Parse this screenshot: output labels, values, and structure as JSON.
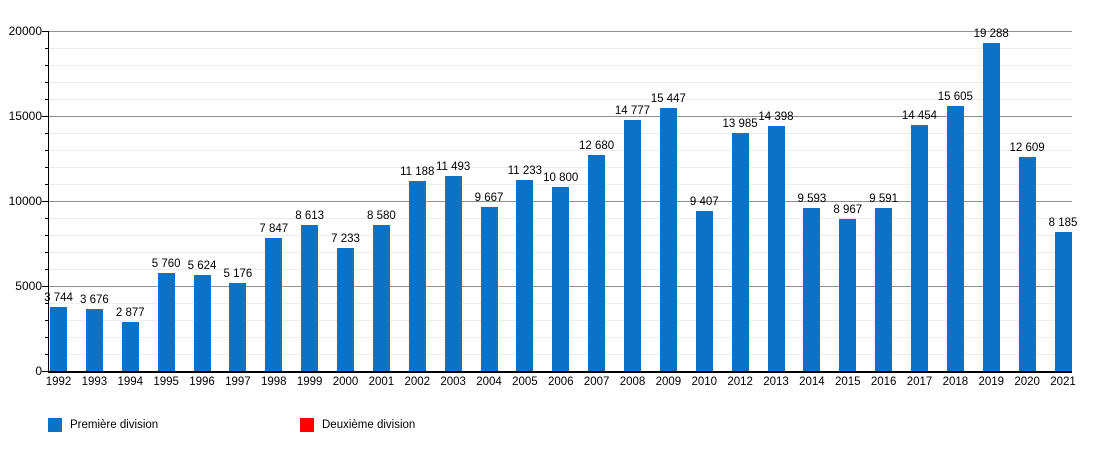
{
  "chart_data": {
    "type": "bar",
    "title": "",
    "xlabel": "",
    "ylabel": "",
    "categories": [
      "1992",
      "1993",
      "1994",
      "1995",
      "1996",
      "1997",
      "1998",
      "1999",
      "2000",
      "2001",
      "2002",
      "2003",
      "2004",
      "2005",
      "2006",
      "2007",
      "2008",
      "2009",
      "2010",
      "2012",
      "2013",
      "2014",
      "2015",
      "2016",
      "2017",
      "2018",
      "2019",
      "2020",
      "2021"
    ],
    "series": [
      {
        "name": "Première division",
        "color": "#0b72c6",
        "values": [
          3744,
          3676,
          2877,
          5760,
          5624,
          5176,
          7847,
          8613,
          7233,
          8580,
          11188,
          11493,
          9667,
          11233,
          10800,
          12680,
          14777,
          15447,
          9407,
          13985,
          14398,
          9593,
          8967,
          9591,
          14454,
          15605,
          19288,
          12609,
          8185
        ],
        "value_labels": [
          "3 744",
          "3 676",
          "2 877",
          "5 760",
          "5 624",
          "5 176",
          "7 847",
          "8 613",
          "7 233",
          "8 580",
          "11 188",
          "11 493",
          "9 667",
          "11 233",
          "10 800",
          "12 680",
          "14 777",
          "15 447",
          "9 407",
          "13 985",
          "14 398",
          "9 593",
          "8 967",
          "9 591",
          "14 454",
          "15 605",
          "19 288",
          "12 609",
          "8 185"
        ]
      },
      {
        "name": "Deuxième division",
        "color": "#ff0000",
        "values": [],
        "value_labels": []
      }
    ],
    "ylim": [
      0,
      20000
    ],
    "y_ticks": [
      0,
      5000,
      10000,
      15000,
      20000
    ],
    "y_tick_labels": [
      "0",
      "5000",
      "10000",
      "15000",
      "20000"
    ],
    "minor_grid_step": 1000,
    "grid": "on",
    "legend_position": "bottom"
  }
}
